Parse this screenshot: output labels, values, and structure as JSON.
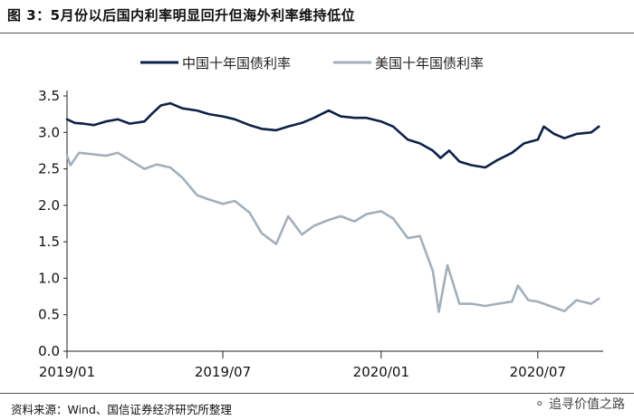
{
  "figure": {
    "title": "图 3：5月份以后国内利率明显回升但海外利率维持低位",
    "source": "资料来源：Wind、国信证券经济研究所整理",
    "watermark": "追寻价值之路",
    "watermark_icon": "wechat-icon"
  },
  "chart_data": {
    "type": "line",
    "title": "",
    "xlabel": "",
    "ylabel": "",
    "x_range": [
      "2019-01-01",
      "2020-09-15"
    ],
    "ylim": [
      0,
      3.5
    ],
    "yticks": [
      "0.0",
      "0.5",
      "1.0",
      "1.5",
      "2.0",
      "2.5",
      "3.0",
      "3.5"
    ],
    "xticks": [
      {
        "label": "2019/01",
        "date": "2019-01-01"
      },
      {
        "label": "2019/07",
        "date": "2019-07-01"
      },
      {
        "label": "2020/01",
        "date": "2020-01-01"
      },
      {
        "label": "2020/07",
        "date": "2020-07-01"
      }
    ],
    "grid": false,
    "legend_position": "top",
    "series": [
      {
        "name": "中国十年国债利率",
        "color": "#0d2148",
        "points": [
          [
            "2019-01-01",
            3.18
          ],
          [
            "2019-01-10",
            3.13
          ],
          [
            "2019-01-20",
            3.12
          ],
          [
            "2019-02-01",
            3.1
          ],
          [
            "2019-02-15",
            3.15
          ],
          [
            "2019-03-01",
            3.18
          ],
          [
            "2019-03-15",
            3.12
          ],
          [
            "2019-04-01",
            3.15
          ],
          [
            "2019-04-10",
            3.26
          ],
          [
            "2019-04-20",
            3.37
          ],
          [
            "2019-05-01",
            3.4
          ],
          [
            "2019-05-15",
            3.33
          ],
          [
            "2019-06-01",
            3.3
          ],
          [
            "2019-06-15",
            3.25
          ],
          [
            "2019-07-01",
            3.22
          ],
          [
            "2019-07-15",
            3.18
          ],
          [
            "2019-08-01",
            3.1
          ],
          [
            "2019-08-15",
            3.05
          ],
          [
            "2019-09-01",
            3.03
          ],
          [
            "2019-09-15",
            3.08
          ],
          [
            "2019-10-01",
            3.13
          ],
          [
            "2019-10-15",
            3.2
          ],
          [
            "2019-11-01",
            3.3
          ],
          [
            "2019-11-15",
            3.22
          ],
          [
            "2019-12-01",
            3.2
          ],
          [
            "2019-12-15",
            3.2
          ],
          [
            "2020-01-01",
            3.15
          ],
          [
            "2020-01-15",
            3.08
          ],
          [
            "2020-02-01",
            2.9
          ],
          [
            "2020-02-15",
            2.85
          ],
          [
            "2020-03-01",
            2.75
          ],
          [
            "2020-03-10",
            2.65
          ],
          [
            "2020-03-20",
            2.75
          ],
          [
            "2020-04-01",
            2.6
          ],
          [
            "2020-04-15",
            2.55
          ],
          [
            "2020-05-01",
            2.52
          ],
          [
            "2020-05-15",
            2.62
          ],
          [
            "2020-06-01",
            2.72
          ],
          [
            "2020-06-15",
            2.85
          ],
          [
            "2020-07-01",
            2.9
          ],
          [
            "2020-07-08",
            3.08
          ],
          [
            "2020-07-20",
            2.98
          ],
          [
            "2020-08-01",
            2.92
          ],
          [
            "2020-08-15",
            2.98
          ],
          [
            "2020-09-01",
            3.0
          ],
          [
            "2020-09-10",
            3.08
          ]
        ]
      },
      {
        "name": "美国十年国债利率",
        "color": "#a3afba",
        "points": [
          [
            "2019-01-01",
            2.68
          ],
          [
            "2019-01-05",
            2.55
          ],
          [
            "2019-01-15",
            2.72
          ],
          [
            "2019-02-01",
            2.7
          ],
          [
            "2019-02-15",
            2.68
          ],
          [
            "2019-03-01",
            2.72
          ],
          [
            "2019-03-15",
            2.62
          ],
          [
            "2019-04-01",
            2.5
          ],
          [
            "2019-04-15",
            2.56
          ],
          [
            "2019-05-01",
            2.52
          ],
          [
            "2019-05-15",
            2.38
          ],
          [
            "2019-06-01",
            2.14
          ],
          [
            "2019-06-15",
            2.08
          ],
          [
            "2019-07-01",
            2.02
          ],
          [
            "2019-07-15",
            2.06
          ],
          [
            "2019-08-01",
            1.9
          ],
          [
            "2019-08-15",
            1.62
          ],
          [
            "2019-09-01",
            1.47
          ],
          [
            "2019-09-15",
            1.85
          ],
          [
            "2019-10-01",
            1.6
          ],
          [
            "2019-10-15",
            1.72
          ],
          [
            "2019-11-01",
            1.8
          ],
          [
            "2019-11-15",
            1.85
          ],
          [
            "2019-12-01",
            1.78
          ],
          [
            "2019-12-15",
            1.88
          ],
          [
            "2020-01-01",
            1.92
          ],
          [
            "2020-01-15",
            1.82
          ],
          [
            "2020-02-01",
            1.55
          ],
          [
            "2020-02-15",
            1.58
          ],
          [
            "2020-03-01",
            1.1
          ],
          [
            "2020-03-08",
            0.54
          ],
          [
            "2020-03-18",
            1.18
          ],
          [
            "2020-04-01",
            0.65
          ],
          [
            "2020-04-15",
            0.65
          ],
          [
            "2020-05-01",
            0.62
          ],
          [
            "2020-05-15",
            0.65
          ],
          [
            "2020-06-01",
            0.68
          ],
          [
            "2020-06-08",
            0.9
          ],
          [
            "2020-06-20",
            0.7
          ],
          [
            "2020-07-01",
            0.68
          ],
          [
            "2020-07-15",
            0.62
          ],
          [
            "2020-08-01",
            0.55
          ],
          [
            "2020-08-15",
            0.7
          ],
          [
            "2020-09-01",
            0.65
          ],
          [
            "2020-09-10",
            0.72
          ]
        ]
      }
    ]
  }
}
